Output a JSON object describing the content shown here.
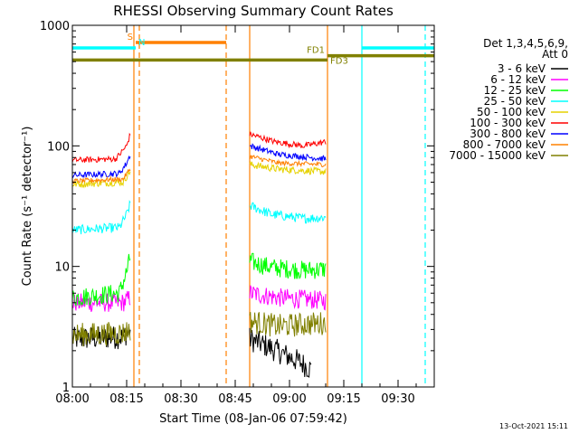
{
  "chart_data": {
    "type": "line",
    "title": "RHESSI Observing Summary Count Rates",
    "xlabel": "Start Time (08-Jan-06 07:59:42)",
    "ylabel": "Count Rate (s⁻¹ detector⁻¹)",
    "y_scale": "log",
    "ylim": [
      1,
      1000
    ],
    "xlim_minutes": [
      0,
      100
    ],
    "x_ticks": [
      {
        "minute": 0,
        "label": "08:00"
      },
      {
        "minute": 15,
        "label": "08:15"
      },
      {
        "minute": 30,
        "label": "08:30"
      },
      {
        "minute": 45,
        "label": "08:45"
      },
      {
        "minute": 60,
        "label": "09:00"
      },
      {
        "minute": 75,
        "label": "09:15"
      },
      {
        "minute": 90,
        "label": "09:30"
      }
    ],
    "y_ticks": [
      {
        "value": 1,
        "label": "1"
      },
      {
        "value": 10,
        "label": "10"
      },
      {
        "value": 100,
        "label": "100"
      },
      {
        "value": 1000,
        "label": "1000"
      }
    ],
    "legend_header": [
      "Det 1,3,4,5,6,9,",
      "Att 0"
    ],
    "series": [
      {
        "name": "3 - 6 keV",
        "color": "#000000",
        "noise": 0.1,
        "seg1": [
          [
            0,
            2.5
          ],
          [
            14,
            2.6
          ],
          [
            16,
            3.0
          ]
        ],
        "seg2": [
          [
            49,
            2.5
          ],
          [
            55,
            2.1
          ],
          [
            63,
            1.6
          ],
          [
            66,
            1.4
          ]
        ]
      },
      {
        "name": "6 - 12 keV",
        "color": "#ff00ff",
        "noise": 0.08,
        "seg1": [
          [
            0,
            5.0
          ],
          [
            14,
            5.0
          ],
          [
            16,
            5.5
          ]
        ],
        "seg2": [
          [
            49,
            6.0
          ],
          [
            57,
            5.5
          ],
          [
            70,
            5.2
          ]
        ]
      },
      {
        "name": "12 - 25 keV",
        "color": "#00ff00",
        "noise": 0.08,
        "seg1": [
          [
            0,
            5.5
          ],
          [
            13,
            6.0
          ],
          [
            15,
            9.0
          ],
          [
            16,
            12.0
          ]
        ],
        "seg2": [
          [
            49,
            11.0
          ],
          [
            55,
            9.8
          ],
          [
            64,
            9.3
          ],
          [
            70,
            9.5
          ]
        ]
      },
      {
        "name": "25 - 50 keV",
        "color": "#00ffff",
        "noise": 0.04,
        "seg1": [
          [
            0,
            20.0
          ],
          [
            13,
            21.0
          ],
          [
            15,
            27.0
          ],
          [
            16,
            33.0
          ]
        ],
        "seg2": [
          [
            49,
            32.0
          ],
          [
            55,
            27.0
          ],
          [
            64,
            25.0
          ],
          [
            70,
            25.5
          ]
        ]
      },
      {
        "name": "50 - 100 keV",
        "color": "#e6d200",
        "noise": 0.03,
        "seg1": [
          [
            0,
            48.0
          ],
          [
            14,
            50.0
          ],
          [
            16,
            62.0
          ]
        ],
        "seg2": [
          [
            49,
            70.0
          ],
          [
            57,
            64.0
          ],
          [
            70,
            61.0
          ]
        ]
      },
      {
        "name": "100 - 300 keV",
        "color": "#ff0000",
        "noise": 0.025,
        "seg1": [
          [
            0,
            76.0
          ],
          [
            12,
            78.0
          ],
          [
            15,
            100.0
          ],
          [
            16,
            125.0
          ]
        ],
        "seg2": [
          [
            49,
            125.0
          ],
          [
            56,
            108.0
          ],
          [
            64,
            100.0
          ],
          [
            70,
            108.0
          ]
        ]
      },
      {
        "name": "300 - 800 keV",
        "color": "#0000ff",
        "noise": 0.025,
        "seg1": [
          [
            0,
            57.0
          ],
          [
            13,
            59.0
          ],
          [
            15,
            72.0
          ],
          [
            16,
            85.0
          ]
        ],
        "seg2": [
          [
            49,
            100.0
          ],
          [
            57,
            85.0
          ],
          [
            70,
            78.0
          ]
        ]
      },
      {
        "name": "800 - 7000 keV",
        "color": "#ff8000",
        "noise": 0.02,
        "seg1": [
          [
            0,
            51.0
          ],
          [
            14,
            53.0
          ],
          [
            16,
            65.0
          ]
        ],
        "seg2": [
          [
            49,
            82.0
          ],
          [
            57,
            72.0
          ],
          [
            70,
            70.0
          ]
        ]
      },
      {
        "name": "7000 - 15000 keV",
        "color": "#808000",
        "noise": 0.1,
        "seg1": [
          [
            0,
            2.7
          ],
          [
            14,
            2.8
          ],
          [
            16,
            3.0
          ]
        ],
        "seg2": [
          [
            49,
            3.5
          ],
          [
            57,
            3.2
          ],
          [
            70,
            3.4
          ]
        ]
      }
    ],
    "state_bars": [
      {
        "label": "S",
        "color": "#ff8000",
        "start": 17.5,
        "end": 42.5,
        "level": 720,
        "label_side": "left"
      },
      {
        "label": "N",
        "color": "#00ffff",
        "start": 0,
        "end": 17.5,
        "level": 650,
        "label_side": "right"
      },
      {
        "label": "N",
        "color": "#00ffff",
        "start": 80.0,
        "end": 100,
        "level": 650,
        "label_side": "none"
      },
      {
        "label": "FD1",
        "color": "#808000",
        "start": 70.5,
        "end": 100,
        "level": 560,
        "label_side": "left"
      },
      {
        "label": "FD3",
        "color": "#808000",
        "start": 0,
        "end": 70.5,
        "level": 515,
        "label_side": "after-gap"
      }
    ],
    "vlines": [
      {
        "minute": 17.0,
        "color": "#ff8000",
        "style": "solid"
      },
      {
        "minute": 18.5,
        "color": "#ff8000",
        "style": "dashed"
      },
      {
        "minute": 42.5,
        "color": "#ff8000",
        "style": "dashed"
      },
      {
        "minute": 49.0,
        "color": "#ff8000",
        "style": "solid"
      },
      {
        "minute": 70.5,
        "color": "#ff8000",
        "style": "solid"
      },
      {
        "minute": 80.0,
        "color": "#00ffff",
        "style": "solid"
      },
      {
        "minute": 97.5,
        "color": "#00ffff",
        "style": "dashed"
      }
    ]
  },
  "footer": {
    "timestamp": "13-Oct-2021 15:11"
  }
}
